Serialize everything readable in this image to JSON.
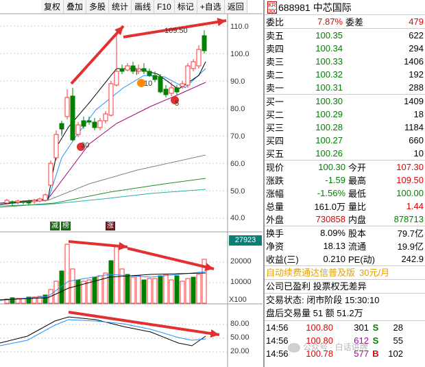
{
  "toolbar": [
    "复权",
    "叠加",
    "多股",
    "统计",
    "画线",
    "F10",
    "标记",
    "+自选",
    "返回"
  ],
  "chart": {
    "price_axis": [
      "110.0",
      "100.0",
      "90.0",
      "80.0",
      "70.0",
      "60.0",
      "50.0",
      "40.0"
    ],
    "price_callout": "109.50",
    "marks": {
      "m30": "30",
      "m10": "10",
      "m5": "5",
      "t1": "T",
      "t2": "T"
    },
    "bottom_tags": {
      "jian": "减",
      "bang": "榜",
      "zhang": "涨"
    },
    "volume_value": "27923",
    "volume_axis": [
      "20000",
      "10000"
    ],
    "volume_unit": "X100",
    "osc_axis": [
      "80.00",
      "50.00",
      "20.00"
    ],
    "colors": {
      "up": "#ff3232",
      "down": "#008000",
      "ma5": "#000000",
      "ma10": "#1e90ff",
      "ma20": "#a0007a",
      "ma60": "#808080",
      "ma120": "#228b22",
      "ma250": "#20b2aa",
      "arrow": "#e23030"
    }
  },
  "quote": {
    "badge_top": "KR",
    "badge_bottom": "300",
    "code": "688981",
    "name": "中芯国际",
    "weibi_label": "委比",
    "weibi_value": "7.87%",
    "weicha_label": "委差",
    "weicha_value": "479",
    "sell": [
      {
        "label": "卖五",
        "price": "100.35",
        "vol": "622"
      },
      {
        "label": "卖四",
        "price": "100.34",
        "vol": "294"
      },
      {
        "label": "卖三",
        "price": "100.33",
        "vol": "1406"
      },
      {
        "label": "卖二",
        "price": "100.32",
        "vol": "192"
      },
      {
        "label": "卖一",
        "price": "100.31",
        "vol": "288"
      }
    ],
    "buy": [
      {
        "label": "买一",
        "price": "100.30",
        "vol": "1409"
      },
      {
        "label": "买二",
        "price": "100.29",
        "vol": "18"
      },
      {
        "label": "买三",
        "price": "100.28",
        "vol": "1184"
      },
      {
        "label": "买四",
        "price": "100.27",
        "vol": "660"
      },
      {
        "label": "买五",
        "price": "100.26",
        "vol": "10"
      }
    ],
    "stats": [
      {
        "k1": "现价",
        "v1": "100.30",
        "k2": "今开",
        "v2": "107.30"
      },
      {
        "k1": "涨跌",
        "v1": "-1.59",
        "k2": "最高",
        "v2": "109.50"
      },
      {
        "k1": "涨幅",
        "v1": "-1.56%",
        "k2": "最低",
        "v2": "100.00"
      },
      {
        "k1": "总量",
        "v1": "161.0万",
        "k2": "量比",
        "v2": "1.44"
      },
      {
        "k1": "外盘",
        "v1": "730858",
        "k2": "内盘",
        "v2": "878713"
      }
    ],
    "fund": [
      {
        "k1": "换手",
        "v1": "8.09%",
        "k2": "股本",
        "v2": "79.7亿"
      },
      {
        "k1": "净资",
        "v1": "18.13",
        "k2": "流通",
        "v2": "19.9亿"
      },
      {
        "k1": "收益(三)",
        "v1": "0.210",
        "k2": "PE(动)",
        "v2": "242.9"
      }
    ],
    "promo_text": "自动续费通达信普及版",
    "promo_price": "30元/月",
    "info_line": "公司已盈利 投票权无差异",
    "trade_status": "交易状态: 闭市阶段 15:30:10",
    "after_hours": "盘后交易量 51 额 51.2万",
    "ticks": [
      {
        "time": "14:56",
        "price": "100.80",
        "vol": "301",
        "side": "S",
        "num": "28"
      },
      {
        "time": "14:56",
        "price": "100.80",
        "vol": "612",
        "side": "S",
        "num": "55"
      },
      {
        "time": "14:56",
        "price": "100.78",
        "vol": "577",
        "side": "B",
        "num": "102"
      }
    ],
    "watermark": "公众号 · 白话讲牌"
  }
}
